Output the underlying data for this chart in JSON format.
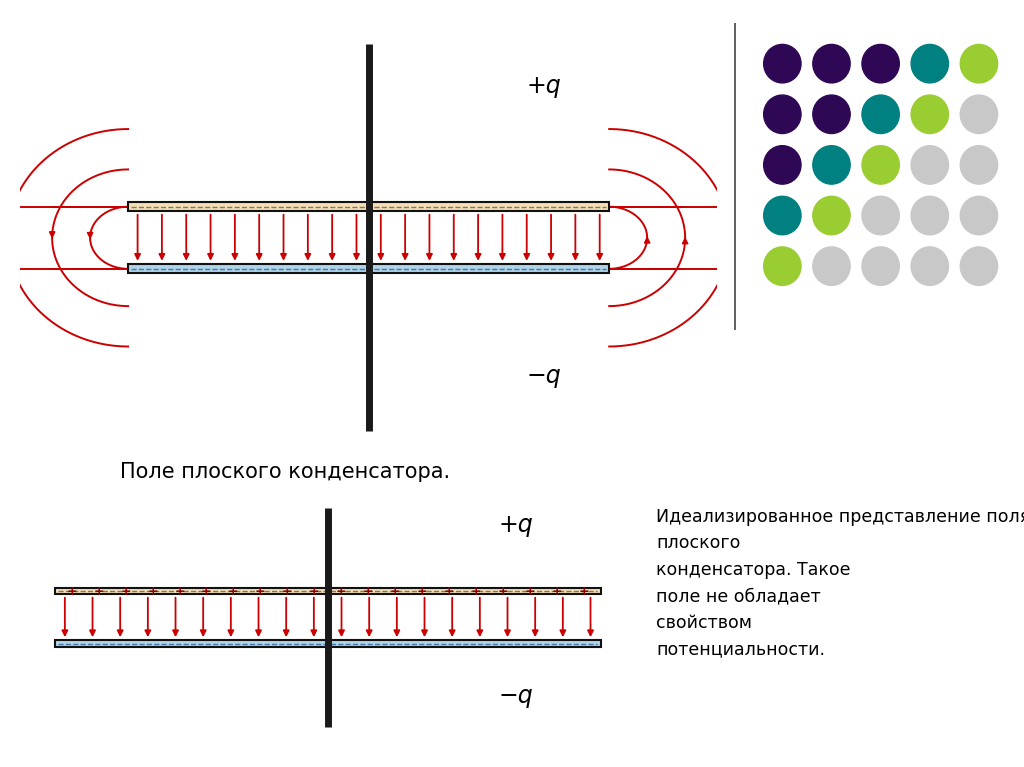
{
  "bg_color": "#FFFFFF",
  "panel_bg": "#F5ECD7",
  "plate_top_color": "#F5DEB3",
  "plate_bot_color": "#B0D4E8",
  "plate_border_color": "#111111",
  "arrow_color": "#CC0000",
  "dashed_color_top": "#777777",
  "dashed_color_bot": "#4477AA",
  "title1": "Поле плоского конденсатора.",
  "title2": "Идеализированное представление поля\nплоского\nконденсатора. Такое\nполе не обладает\nсвойством\nпотенциальности.",
  "label_plus_q": "+q",
  "label_minus_q": "−q",
  "dot_colors_grid": [
    [
      "#2E0854",
      "#2E0854",
      "#2E0854",
      "#008080",
      "#9ACD32"
    ],
    [
      "#2E0854",
      "#2E0854",
      "#008080",
      "#9ACD32",
      "#C8C8C8"
    ],
    [
      "#2E0854",
      "#008080",
      "#9ACD32",
      "#C8C8C8",
      "#C8C8C8"
    ],
    [
      "#008080",
      "#9ACD32",
      "#C8C8C8",
      "#C8C8C8",
      "#C8C8C8"
    ],
    [
      "#9ACD32",
      "#C8C8C8",
      "#C8C8C8",
      "#C8C8C8",
      "#C8C8C8"
    ]
  ]
}
